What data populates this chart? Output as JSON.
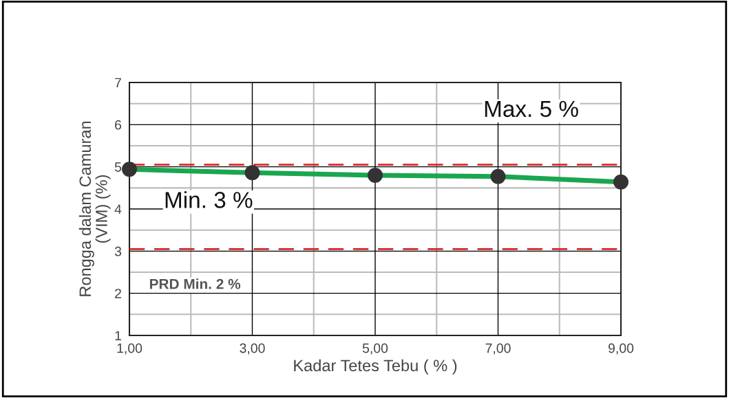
{
  "chart_data": {
    "type": "line",
    "xlabel": "Kadar Tetes Tebu ( % )",
    "ylabel": "Rongga dalam Camuran\n(VIM) (%)",
    "x": [
      1,
      3,
      5,
      7,
      9
    ],
    "series": [
      {
        "color": "#1aa650",
        "values": [
          4.94,
          4.86,
          4.8,
          4.77,
          4.64
        ]
      }
    ],
    "marker": "circle",
    "line_style": "solid",
    "grid": true,
    "xlim": [
      1,
      9
    ],
    "xticks": [
      {
        "value": 1,
        "label": "1,00"
      },
      {
        "value": 3,
        "label": "3,00"
      },
      {
        "value": 5,
        "label": "5,00"
      },
      {
        "value": 7,
        "label": "7,00"
      },
      {
        "value": 9,
        "label": "9,00"
      }
    ],
    "ylim": [
      1,
      7
    ],
    "yticks": [
      1,
      2,
      3,
      4,
      5,
      6,
      7
    ],
    "ref_lines": [
      {
        "axis": "y",
        "value": 5.05,
        "color": "#d62728",
        "line_style": "dashed"
      },
      {
        "axis": "y",
        "value": 3.05,
        "color": "#d62728",
        "line_style": "dashed"
      }
    ],
    "annotations": [
      "Max. 5 %",
      "Min. 3 %",
      "PRD Min. 2 %"
    ]
  }
}
